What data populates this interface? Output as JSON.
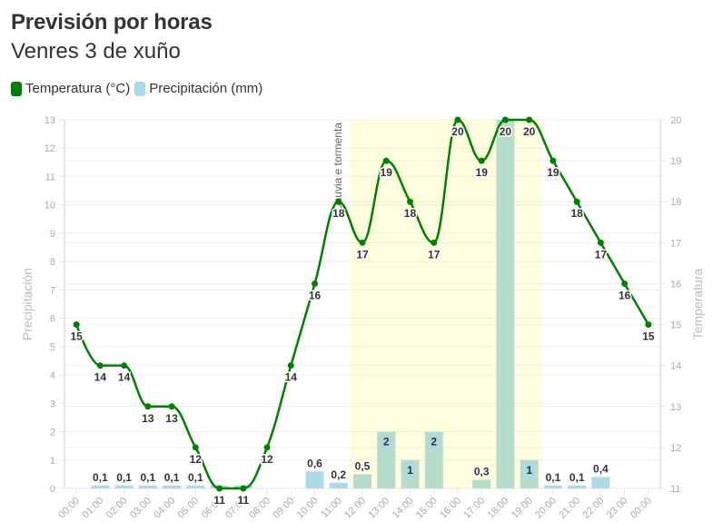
{
  "header": {
    "title": "Previsión por horas",
    "subtitle": "Venres 3 de xuño"
  },
  "legend": [
    {
      "label": "Temperatura (°C)",
      "color": "#008000",
      "icon": "green-square"
    },
    {
      "label": "Precipitación (mm)",
      "color": "#add8e6",
      "icon": "lightblue-square"
    }
  ],
  "colors": {
    "temperature": "#008000",
    "precipitation": "#add8e6",
    "plot_band": "rgba(255,255,0,0.12)",
    "grid": "#eeeeee",
    "axis_line": "#e6e6e6",
    "axis_label": "#aaaaaa",
    "axis_title": "#bbbbbb",
    "data_label": "#333333"
  },
  "chart_data": {
    "type": "line+bar",
    "title": "Previsión por horas",
    "subtitle": "Venres 3 de xuño",
    "categories": [
      "00:00",
      "01:00",
      "02:00",
      "03:00",
      "04:00",
      "05:00",
      "06:00",
      "07:00",
      "08:00",
      "09:00",
      "10:00",
      "11:00",
      "12:00",
      "13:00",
      "14:00",
      "15:00",
      "16:00",
      "17:00",
      "18:00",
      "19:00",
      "20:00",
      "21:00",
      "22:00",
      "23:00",
      "00:00"
    ],
    "series": [
      {
        "name": "Temperatura (°C)",
        "type": "spline",
        "yAxis": "right",
        "values": [
          15,
          14,
          14,
          13,
          13,
          12,
          11,
          11,
          12,
          14,
          16,
          18,
          17,
          19,
          18,
          17,
          20,
          19,
          20,
          20,
          19,
          18,
          17,
          16,
          15
        ],
        "labels": [
          "15",
          "14",
          "14",
          "13",
          "13",
          "12",
          "11",
          "11",
          "12",
          "14",
          "16",
          "18",
          "17",
          "19",
          "18",
          "17",
          "20",
          "19",
          "20",
          "20",
          "19",
          "18",
          "17",
          "16",
          "15"
        ]
      },
      {
        "name": "Precipitación (mm)",
        "type": "column",
        "yAxis": "left",
        "values": [
          null,
          0.1,
          0.1,
          0.1,
          0.1,
          0.1,
          0.1,
          0.1,
          null,
          null,
          0.6,
          0.2,
          0.5,
          2,
          1,
          2,
          null,
          0.3,
          13,
          1,
          0.1,
          0.1,
          0.4,
          null,
          null
        ],
        "labels": [
          null,
          "0,1",
          "0,1",
          "0,1",
          "0,1",
          "0,1",
          null,
          null,
          null,
          null,
          "0,6",
          "0,2",
          "0,5",
          "2",
          "1",
          "2",
          null,
          "0,3",
          null,
          "1",
          "0,1",
          "0,1",
          "0,4",
          null,
          null
        ],
        "label_inside": [
          false,
          false,
          false,
          false,
          false,
          false,
          false,
          false,
          false,
          false,
          false,
          false,
          false,
          true,
          true,
          true,
          false,
          false,
          false,
          true,
          false,
          false,
          false,
          false,
          false
        ]
      }
    ],
    "y_left": {
      "title": "Precipitación",
      "min": 0,
      "max": 13,
      "ticks": [
        0,
        1,
        2,
        3,
        4,
        5,
        6,
        7,
        8,
        9,
        10,
        11,
        12,
        13
      ]
    },
    "y_right": {
      "title": "Temperatura",
      "min": 11,
      "max": 20,
      "ticks": [
        11,
        12,
        13,
        14,
        15,
        16,
        17,
        18,
        19,
        20
      ]
    },
    "plot_bands": [
      {
        "from": 11.5,
        "to": 19.5,
        "label": "Chuvia e tormenta"
      }
    ],
    "xlabel": "",
    "grid": true,
    "legend_position": "top-left"
  }
}
